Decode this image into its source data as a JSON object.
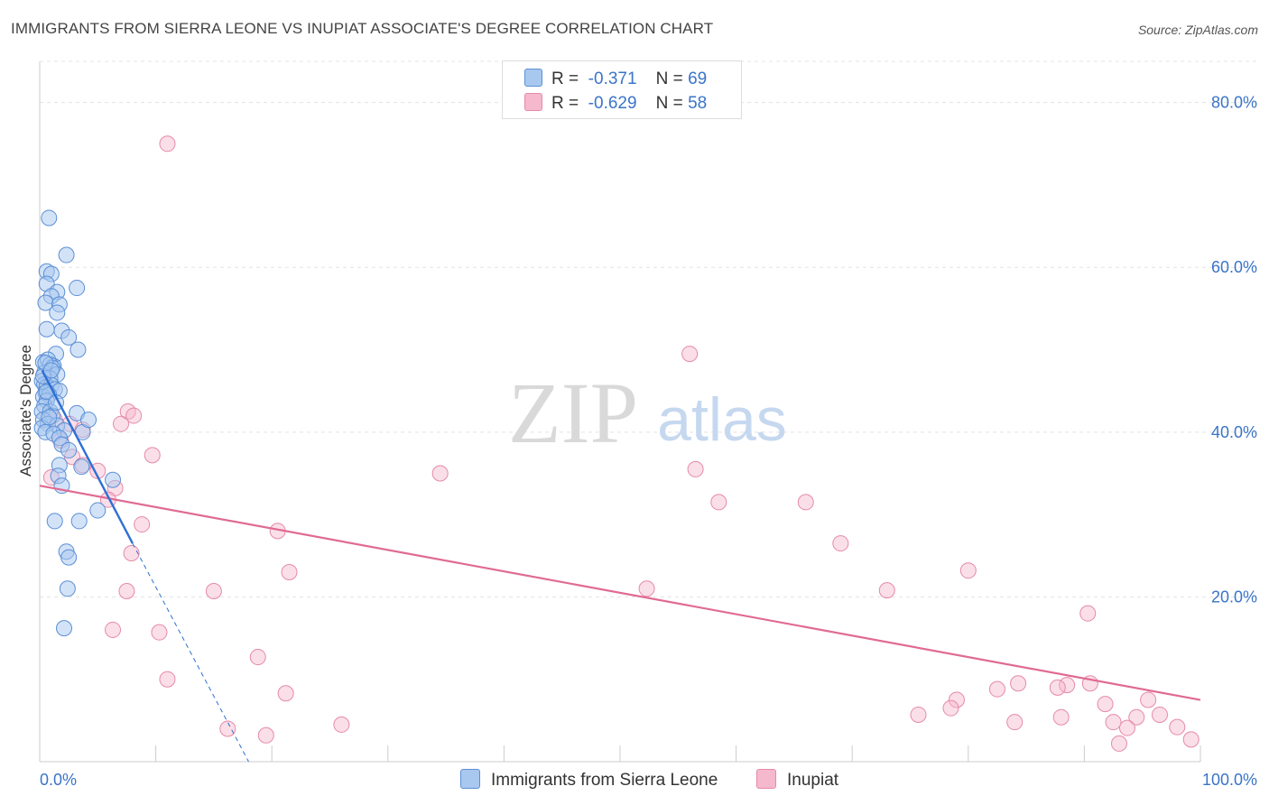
{
  "title": "IMMIGRANTS FROM SIERRA LEONE VS INUPIAT ASSOCIATE'S DEGREE CORRELATION CHART",
  "source": "Source: ZipAtlas.com",
  "watermark": {
    "zip": "ZIP",
    "atlas": "atlas"
  },
  "legend": {
    "rows": [
      {
        "r_label": "R =",
        "r_value": "-0.371",
        "n_label": "N =",
        "n_value": "69",
        "color": "#a8c8f0"
      },
      {
        "r_label": "R =",
        "r_value": "-0.629",
        "n_label": "N =",
        "n_value": "58",
        "color": "#f6b8cc"
      }
    ]
  },
  "bottom_legend": {
    "series1": "Immigrants from Sierra Leone",
    "series2": "Inupiat"
  },
  "chart_data": {
    "type": "scatter",
    "xlabel": "",
    "ylabel": "Associate's Degree",
    "xlim": [
      0,
      100
    ],
    "ylim": [
      0,
      85
    ],
    "x_ticks": [
      "0.0%",
      "100.0%"
    ],
    "y_ticks": [
      {
        "value": 20,
        "label": "20.0%"
      },
      {
        "value": 40,
        "label": "40.0%"
      },
      {
        "value": 60,
        "label": "60.0%"
      },
      {
        "value": 80,
        "label": "80.0%"
      }
    ],
    "grid": true,
    "colors": {
      "series1_fill": "#a8c8f0",
      "series1_stroke": "#5b8fd6",
      "series1_line": "#2f6fd4",
      "series2_fill": "#f6b8cc",
      "series2_stroke": "#e58aa8",
      "series2_line": "#e06a93",
      "tick_label": "#3a74c9"
    },
    "series": [
      {
        "name": "Immigrants from Sierra Leone",
        "trend": {
          "x0": 0.2,
          "y0": 47.5,
          "x1": 8.0,
          "y1": 26.5,
          "dash_x1": 18.0,
          "dash_y1": 0.0
        },
        "points": [
          [
            0.8,
            66.0
          ],
          [
            2.3,
            61.5
          ],
          [
            0.6,
            59.5
          ],
          [
            1.0,
            59.2
          ],
          [
            0.6,
            58.0
          ],
          [
            3.2,
            57.5
          ],
          [
            1.5,
            57.0
          ],
          [
            1.0,
            56.5
          ],
          [
            0.5,
            55.7
          ],
          [
            1.7,
            55.5
          ],
          [
            1.5,
            54.5
          ],
          [
            0.6,
            52.5
          ],
          [
            1.9,
            52.3
          ],
          [
            2.5,
            51.5
          ],
          [
            3.3,
            50.0
          ],
          [
            1.4,
            49.5
          ],
          [
            0.3,
            48.5
          ],
          [
            0.7,
            48.8
          ],
          [
            1.2,
            48.0
          ],
          [
            0.9,
            48.2
          ],
          [
            1.1,
            47.8
          ],
          [
            0.4,
            47.2
          ],
          [
            1.5,
            47.0
          ],
          [
            0.9,
            46.5
          ],
          [
            0.2,
            46.2
          ],
          [
            0.4,
            45.8
          ],
          [
            0.6,
            45.5
          ],
          [
            1.0,
            45.7
          ],
          [
            1.3,
            45.2
          ],
          [
            0.5,
            44.8
          ],
          [
            1.7,
            45.0
          ],
          [
            0.3,
            44.3
          ],
          [
            0.8,
            44.5
          ],
          [
            0.6,
            43.8
          ],
          [
            0.4,
            43.2
          ],
          [
            0.2,
            42.5
          ],
          [
            0.9,
            42.5
          ],
          [
            1.1,
            42.0
          ],
          [
            3.2,
            42.3
          ],
          [
            0.3,
            41.5
          ],
          [
            0.7,
            41.0
          ],
          [
            0.2,
            40.5
          ],
          [
            1.5,
            40.8
          ],
          [
            2.1,
            40.2
          ],
          [
            0.5,
            40.0
          ],
          [
            1.2,
            39.8
          ],
          [
            1.7,
            39.3
          ],
          [
            3.7,
            40.0
          ],
          [
            1.9,
            38.5
          ],
          [
            2.5,
            37.8
          ],
          [
            4.2,
            41.5
          ],
          [
            1.7,
            36.0
          ],
          [
            3.6,
            35.8
          ],
          [
            1.6,
            34.7
          ],
          [
            6.3,
            34.2
          ],
          [
            1.9,
            33.5
          ],
          [
            5.0,
            30.5
          ],
          [
            1.3,
            29.2
          ],
          [
            3.4,
            29.2
          ],
          [
            2.3,
            25.5
          ],
          [
            2.5,
            24.8
          ],
          [
            2.4,
            21.0
          ],
          [
            2.1,
            16.2
          ],
          [
            0.3,
            46.8
          ],
          [
            0.5,
            48.4
          ],
          [
            1.0,
            47.5
          ],
          [
            0.6,
            44.9
          ],
          [
            1.4,
            43.6
          ],
          [
            0.8,
            41.8
          ]
        ]
      },
      {
        "name": "Inupiat",
        "trend": {
          "x0": 0.0,
          "y0": 33.5,
          "x1": 100.0,
          "y1": 7.5
        },
        "points": [
          [
            11.0,
            75.0
          ],
          [
            56.0,
            49.5
          ],
          [
            7.6,
            42.5
          ],
          [
            8.1,
            42.0
          ],
          [
            1.3,
            41.5
          ],
          [
            2.6,
            41.0
          ],
          [
            7.0,
            41.0
          ],
          [
            3.7,
            40.3
          ],
          [
            1.8,
            39.0
          ],
          [
            9.7,
            37.2
          ],
          [
            2.8,
            37.0
          ],
          [
            3.7,
            36.0
          ],
          [
            5.0,
            35.3
          ],
          [
            56.5,
            35.5
          ],
          [
            34.5,
            35.0
          ],
          [
            1.0,
            34.5
          ],
          [
            6.5,
            33.2
          ],
          [
            5.9,
            31.8
          ],
          [
            58.5,
            31.5
          ],
          [
            66.0,
            31.5
          ],
          [
            8.8,
            28.8
          ],
          [
            20.5,
            28.0
          ],
          [
            69.0,
            26.5
          ],
          [
            7.9,
            25.3
          ],
          [
            21.5,
            23.0
          ],
          [
            80.0,
            23.2
          ],
          [
            52.3,
            21.0
          ],
          [
            7.5,
            20.7
          ],
          [
            15.0,
            20.7
          ],
          [
            73.0,
            20.8
          ],
          [
            90.3,
            18.0
          ],
          [
            6.3,
            16.0
          ],
          [
            10.3,
            15.7
          ],
          [
            18.8,
            12.7
          ],
          [
            11.0,
            10.0
          ],
          [
            21.2,
            8.3
          ],
          [
            90.5,
            9.5
          ],
          [
            84.3,
            9.5
          ],
          [
            88.5,
            9.3
          ],
          [
            87.7,
            9.0
          ],
          [
            82.5,
            8.8
          ],
          [
            79.0,
            7.5
          ],
          [
            91.8,
            7.0
          ],
          [
            95.5,
            7.5
          ],
          [
            78.5,
            6.5
          ],
          [
            75.7,
            5.7
          ],
          [
            88.0,
            5.4
          ],
          [
            96.5,
            5.7
          ],
          [
            94.5,
            5.4
          ],
          [
            92.5,
            4.8
          ],
          [
            84.0,
            4.8
          ],
          [
            26.0,
            4.5
          ],
          [
            16.2,
            4.0
          ],
          [
            93.7,
            4.1
          ],
          [
            98.0,
            4.2
          ],
          [
            19.5,
            3.2
          ],
          [
            99.2,
            2.7
          ],
          [
            93.0,
            2.2
          ]
        ]
      }
    ]
  }
}
